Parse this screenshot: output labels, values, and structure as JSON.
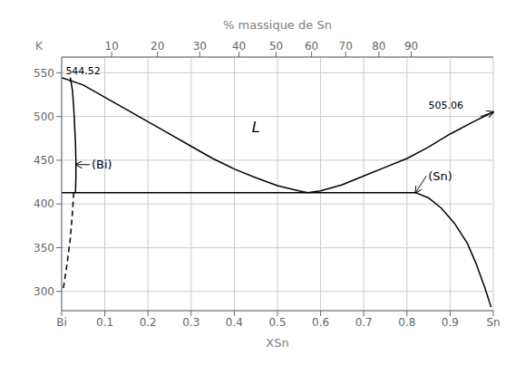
{
  "chart_data": {
    "type": "line",
    "xlabel": "XSn",
    "ylabel": "K",
    "x2label": "% massique de Sn",
    "xlim": [
      0.0,
      1.0
    ],
    "ylim": [
      278,
      568
    ],
    "xticks": [
      {
        "value": 0.0,
        "label": "Bi"
      },
      0.1,
      0.2,
      0.3,
      0.4,
      0.5,
      0.6,
      0.7,
      0.8,
      0.9,
      {
        "value": 1.0,
        "label": "Sn"
      }
    ],
    "yticks": [
      300,
      350,
      400,
      450,
      500,
      550
    ],
    "x2ticks": [
      {
        "value": 0.116,
        "label": "10"
      },
      {
        "value": 0.222,
        "label": "20"
      },
      {
        "value": 0.32,
        "label": "30"
      },
      {
        "value": 0.411,
        "label": "40"
      },
      {
        "value": 0.497,
        "label": "50"
      },
      {
        "value": 0.579,
        "label": "60"
      },
      {
        "value": 0.658,
        "label": "70"
      },
      {
        "value": 0.735,
        "label": "80"
      },
      {
        "value": 0.81,
        "label": "90"
      }
    ],
    "grid": true,
    "series": [
      {
        "color": "black",
        "line_style": "solid",
        "x": [
          0.0,
          0.05,
          0.1,
          0.15,
          0.2,
          0.25,
          0.3,
          0.35,
          0.4,
          0.45,
          0.5,
          0.55,
          0.57
        ],
        "values": [
          544.52,
          536.0,
          522.0,
          508.0,
          494.0,
          480.0,
          466.0,
          452.0,
          440.0,
          430.0,
          421.0,
          415.0,
          413.0
        ]
      },
      {
        "color": "black",
        "line_style": "solid",
        "x": [
          0.57,
          0.6,
          0.65,
          0.7,
          0.75,
          0.8,
          0.85,
          0.9,
          0.95,
          1.0
        ],
        "values": [
          413.0,
          415.0,
          422.0,
          432.0,
          442.0,
          452.0,
          465.0,
          480.0,
          493.0,
          505.06
        ]
      },
      {
        "color": "black",
        "line_style": "solid",
        "x": [
          0.0,
          0.82
        ],
        "values": [
          413.0,
          413.0
        ]
      },
      {
        "color": "black",
        "line_style": "solid",
        "x": [
          0.02,
          0.025,
          0.028,
          0.03,
          0.032,
          0.033,
          0.033,
          0.032
        ],
        "values": [
          544.52,
          530.0,
          510.0,
          490.0,
          470.0,
          450.0,
          430.0,
          413.0
        ]
      },
      {
        "color": "black",
        "line_style": "dashed",
        "x": [
          0.028,
          0.025,
          0.02,
          0.012,
          0.003
        ],
        "values": [
          413.0,
          390.0,
          360.0,
          330.0,
          300.0
        ]
      },
      {
        "color": "black",
        "line_style": "solid",
        "x": [
          0.82,
          0.85,
          0.88,
          0.91,
          0.94,
          0.96,
          0.98,
          0.995
        ],
        "values": [
          413.0,
          407.0,
          395.0,
          378.0,
          355.0,
          332.0,
          305.0,
          282.0
        ]
      }
    ],
    "annotations": [
      {
        "text": "L",
        "x": 0.45,
        "y": 488.0
      },
      {
        "text": "(Bi)",
        "x": 0.065,
        "y": 445.0,
        "arrow_to": [
          0.033,
          445.0
        ]
      },
      {
        "text": "(Sn)",
        "x": 0.845,
        "y": 432.0,
        "arrow_to": [
          0.82,
          413.0
        ]
      },
      {
        "text": "544.52",
        "x": 0.005,
        "y": 548.0
      },
      {
        "text": "505.06",
        "x": 0.935,
        "y": 509.0
      }
    ],
    "arrows": [
      {
        "from": [
          0.97,
          500.0
        ],
        "to": [
          1.0,
          505.06
        ]
      }
    ]
  }
}
